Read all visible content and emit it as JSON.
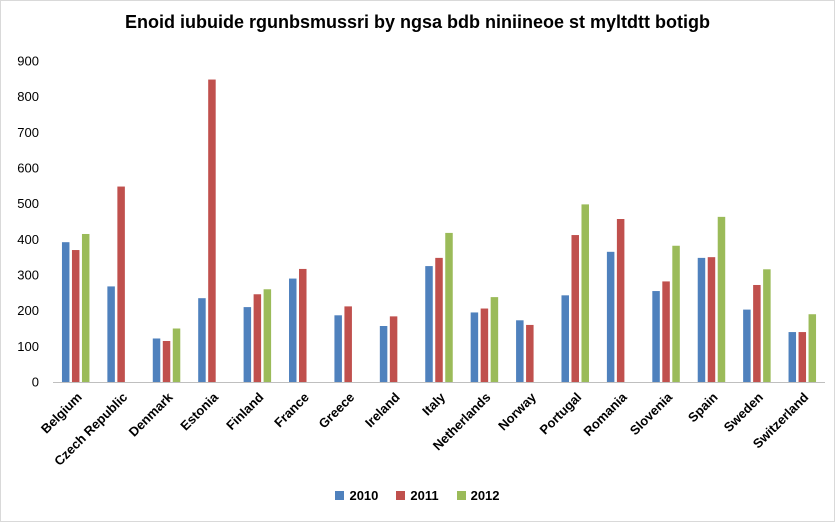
{
  "chart_data": {
    "type": "bar",
    "title": "Enoid iubuide rgunbsmussri by ngsa bdb niniineoe st myltdtt botigb",
    "xlabel": "",
    "ylabel": "",
    "ylim": [
      0,
      900
    ],
    "yticks": [
      0,
      100,
      200,
      300,
      400,
      500,
      600,
      700,
      800,
      900
    ],
    "grid": "none",
    "legend_position": "bottom",
    "categories": [
      "Belgium",
      "Czech Republic",
      "Denmark",
      "Estonia",
      "Finland",
      "France",
      "Greece",
      "Ireland",
      "Italy",
      "Netherlands",
      "Norway",
      "Portugal",
      "Romania",
      "Slovenia",
      "Spain",
      "Sweden",
      "Switzerland"
    ],
    "series": [
      {
        "name": "2010",
        "color": "#4f81bd",
        "values": [
          392,
          268,
          122,
          235,
          210,
          290,
          187,
          157,
          325,
          195,
          173,
          243,
          365,
          255,
          348,
          203,
          140
        ]
      },
      {
        "name": "2011",
        "color": "#c0504d",
        "values": [
          370,
          548,
          115,
          848,
          246,
          317,
          212,
          184,
          348,
          206,
          160,
          412,
          457,
          282,
          350,
          272,
          140
        ]
      },
      {
        "name": "2012",
        "color": "#9bbb59",
        "values": [
          415,
          null,
          150,
          null,
          260,
          null,
          null,
          null,
          418,
          238,
          null,
          498,
          null,
          382,
          463,
          316,
          190
        ]
      }
    ]
  }
}
